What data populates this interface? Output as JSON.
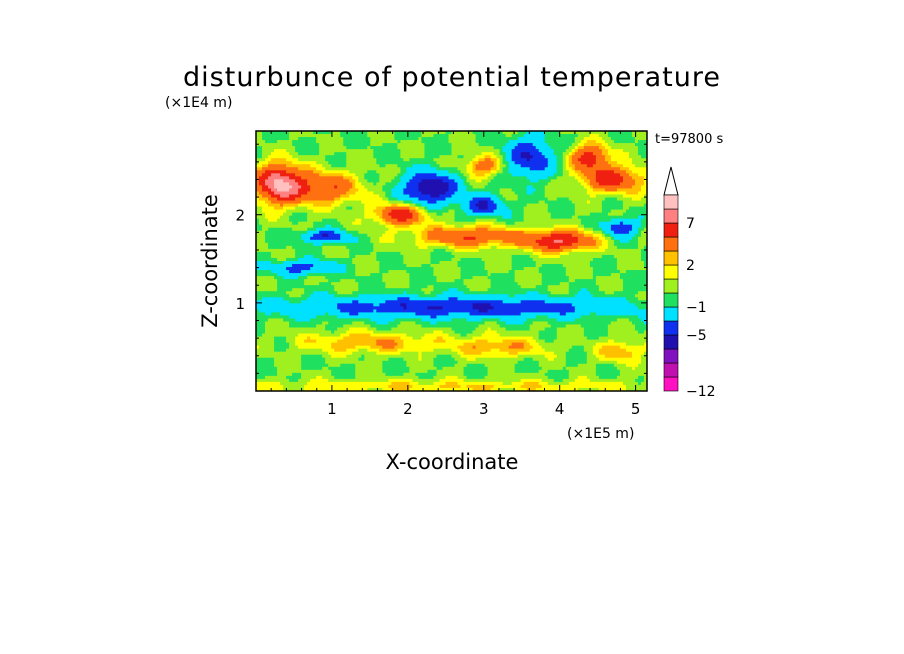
{
  "chart_data": {
    "type": "heatmap",
    "title": "disturbunce of potential temperature",
    "time_label": "t=97800 s",
    "xlabel": "X-coordinate",
    "ylabel": "Z-coordinate",
    "x_unit": "(×1E5 m)",
    "y_unit": "(×1E4 m)",
    "xlim": [
      0,
      5.15
    ],
    "ylim": [
      0,
      2.95
    ],
    "x_ticks": [
      1,
      2,
      3,
      4,
      5
    ],
    "y_ticks": [
      1,
      2
    ],
    "colorbar": {
      "levels": [
        -12,
        -11,
        -9,
        -7,
        -5,
        -3,
        -1,
        0,
        1,
        2,
        3,
        5,
        7,
        9,
        11
      ],
      "labels": [
        {
          "value": -12,
          "text": "−12"
        },
        {
          "value": -5,
          "text": "−5"
        },
        {
          "value": -1,
          "text": "−1"
        },
        {
          "value": 2,
          "text": "2"
        },
        {
          "value": 7,
          "text": "7"
        }
      ],
      "colors": [
        "#ff10c0",
        "#c010b0",
        "#8010c0",
        "#2010b0",
        "#1030f0",
        "#00e0ff",
        "#20e060",
        "#a0f020",
        "#ffff00",
        "#ffc000",
        "#ff7010",
        "#f02010",
        "#ff8080",
        "#ffc0c0"
      ],
      "extend": "max"
    },
    "features": [
      {
        "x": 0.3,
        "z": 2.35,
        "amp": 9,
        "sx": 0.3,
        "sz": 0.22
      },
      {
        "x": 0.9,
        "z": 2.3,
        "amp": 5,
        "sx": 0.45,
        "sz": 0.18
      },
      {
        "x": 1.9,
        "z": 2.0,
        "amp": 6,
        "sx": 0.35,
        "sz": 0.12
      },
      {
        "x": 2.3,
        "z": 2.3,
        "amp": -7,
        "sx": 0.35,
        "sz": 0.18
      },
      {
        "x": 3.0,
        "z": 2.1,
        "amp": -5,
        "sx": 0.25,
        "sz": 0.12
      },
      {
        "x": 3.0,
        "z": 2.55,
        "amp": 4,
        "sx": 0.25,
        "sz": 0.12
      },
      {
        "x": 3.6,
        "z": 2.65,
        "amp": -5,
        "sx": 0.3,
        "sz": 0.22
      },
      {
        "x": 4.4,
        "z": 2.65,
        "amp": 6,
        "sx": 0.25,
        "sz": 0.15
      },
      {
        "x": 4.7,
        "z": 2.4,
        "amp": 6,
        "sx": 0.4,
        "sz": 0.15
      },
      {
        "x": 2.8,
        "z": 1.75,
        "amp": 5,
        "sx": 0.7,
        "sz": 0.12
      },
      {
        "x": 4.0,
        "z": 1.7,
        "amp": 7,
        "sx": 0.45,
        "sz": 0.12
      },
      {
        "x": 0.9,
        "z": 1.75,
        "amp": -5,
        "sx": 0.3,
        "sz": 0.07
      },
      {
        "x": 4.8,
        "z": 1.85,
        "amp": -5,
        "sx": 0.2,
        "sz": 0.1
      },
      {
        "x": 0.6,
        "z": 1.4,
        "amp": -4,
        "sx": 0.4,
        "sz": 0.08
      },
      {
        "x": 2.6,
        "z": 0.95,
        "amp": -5,
        "sx": 2.2,
        "sz": 0.12
      },
      {
        "x": 1.5,
        "z": 0.55,
        "amp": 3,
        "sx": 0.9,
        "sz": 0.12
      },
      {
        "x": 3.2,
        "z": 0.5,
        "amp": 3,
        "sx": 0.6,
        "sz": 0.12
      },
      {
        "x": 4.8,
        "z": 0.45,
        "amp": 3,
        "sx": 0.3,
        "sz": 0.12
      },
      {
        "x": 2.5,
        "z": 0.05,
        "amp": 2,
        "sx": 3.0,
        "sz": 0.08
      }
    ]
  }
}
